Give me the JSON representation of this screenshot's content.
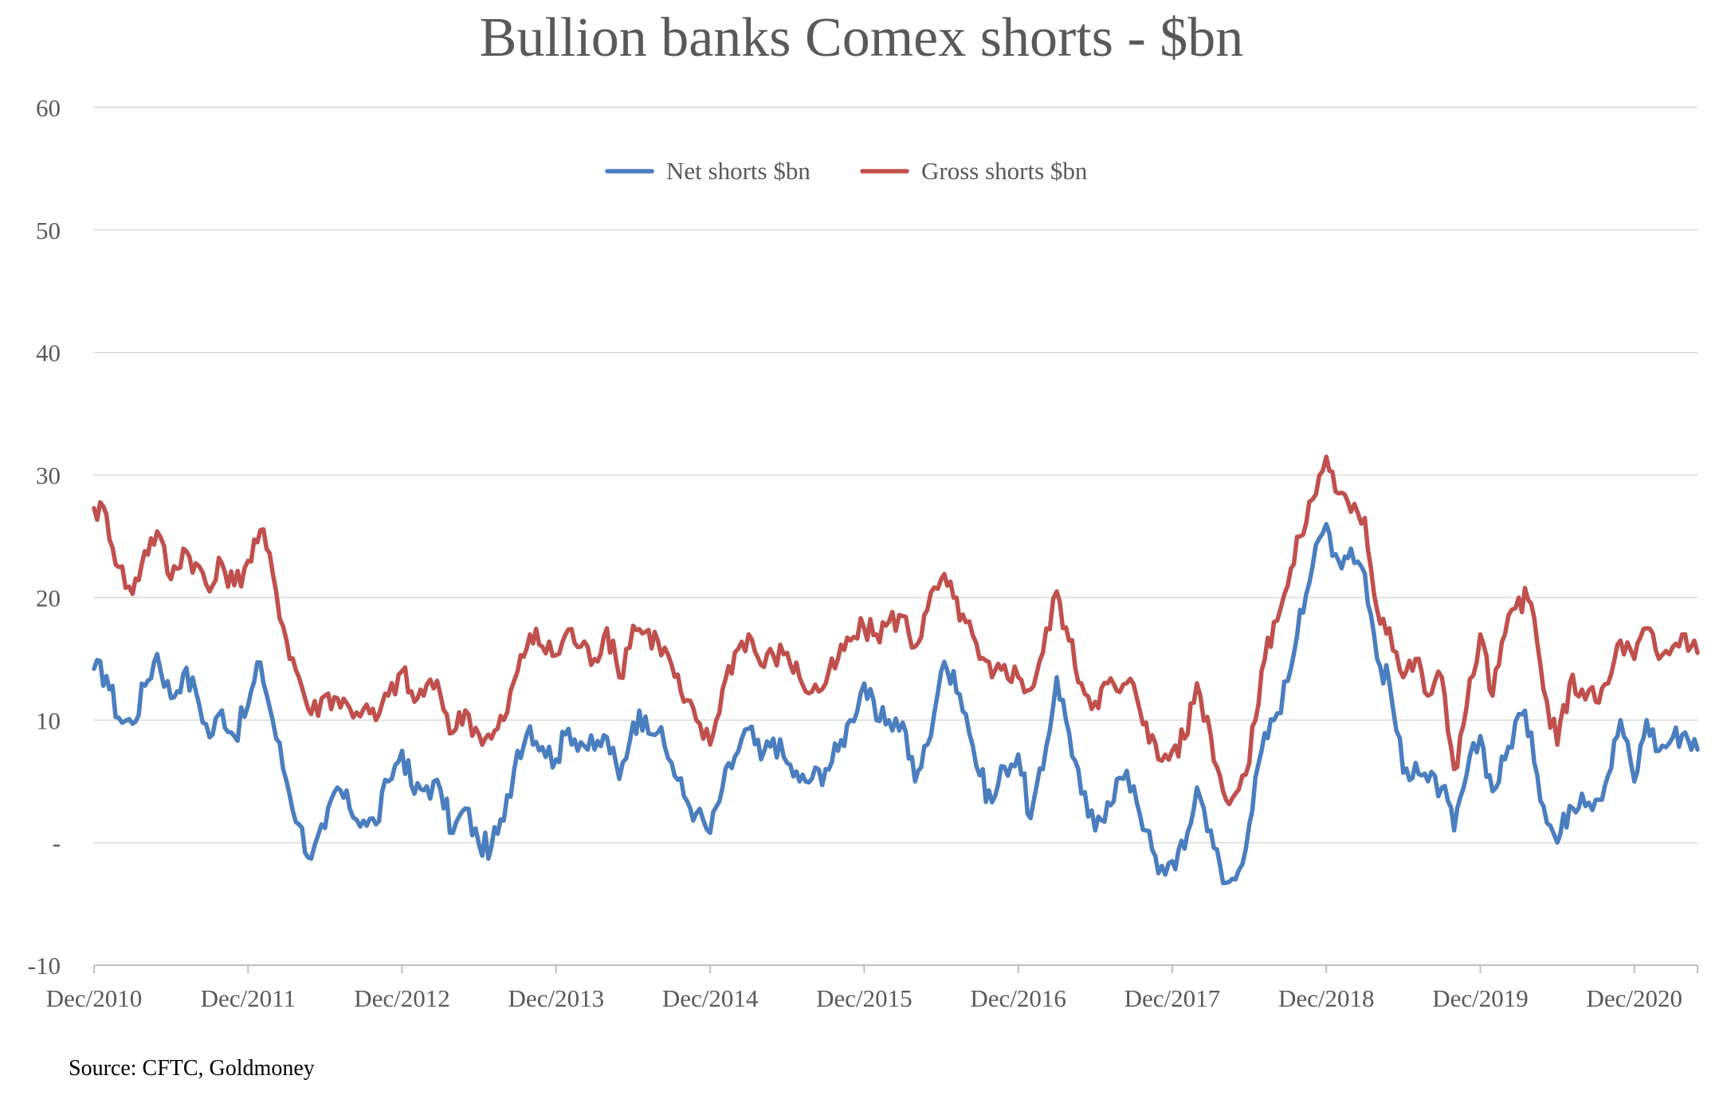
{
  "chart_data": {
    "type": "line",
    "title": "Bullion banks Comex shorts - $bn",
    "source": "Source: CFTC, Goldmoney",
    "ylim": [
      -10,
      60
    ],
    "y_ticks": [
      {
        "value": 60,
        "label": "60"
      },
      {
        "value": 50,
        "label": "50"
      },
      {
        "value": 40,
        "label": "40"
      },
      {
        "value": 30,
        "label": "30"
      },
      {
        "value": 20,
        "label": "20"
      },
      {
        "value": 10,
        "label": "10"
      },
      {
        "value": 0,
        "label": "-"
      },
      {
        "value": -10,
        "label": "-10"
      }
    ],
    "x_ticks": [
      "Dec/2010",
      "Dec/2011",
      "Dec/2012",
      "Dec/2013",
      "Dec/2014",
      "Dec/2015",
      "Dec/2016",
      "Dec/2017",
      "Dec/2018",
      "Dec/2019",
      "Dec/2020"
    ],
    "x_range_years": [
      2010.92,
      2021.33
    ],
    "grid": true,
    "legend_position": "top-center",
    "series": [
      {
        "name": "Net shorts $bn",
        "color": "#4a7ebf",
        "points": [
          [
            2010.92,
            14.2
          ],
          [
            2011.0,
            13.6
          ],
          [
            2011.08,
            10.2
          ],
          [
            2011.17,
            9.7
          ],
          [
            2011.25,
            12.8
          ],
          [
            2011.33,
            15.4
          ],
          [
            2011.42,
            11.8
          ],
          [
            2011.5,
            13.8
          ],
          [
            2011.58,
            12.4
          ],
          [
            2011.67,
            8.6
          ],
          [
            2011.75,
            10.8
          ],
          [
            2011.83,
            8.7
          ],
          [
            2011.92,
            11.2
          ],
          [
            2012.0,
            14.7
          ],
          [
            2012.08,
            10.0
          ],
          [
            2012.17,
            5.0
          ],
          [
            2012.25,
            1.5
          ],
          [
            2012.33,
            -1.3
          ],
          [
            2012.42,
            1.2
          ],
          [
            2012.5,
            4.5
          ],
          [
            2012.58,
            2.8
          ],
          [
            2012.67,
            1.8
          ],
          [
            2012.75,
            1.5
          ],
          [
            2012.83,
            5.0
          ],
          [
            2012.92,
            7.5
          ],
          [
            2013.0,
            4.0
          ],
          [
            2013.08,
            4.6
          ],
          [
            2013.17,
            4.3
          ],
          [
            2013.25,
            0.8
          ],
          [
            2013.33,
            2.8
          ],
          [
            2013.42,
            -0.2
          ],
          [
            2013.5,
            -0.3
          ],
          [
            2013.58,
            1.8
          ],
          [
            2013.67,
            7.5
          ],
          [
            2013.75,
            9.5
          ],
          [
            2013.83,
            7.8
          ],
          [
            2013.92,
            6.8
          ],
          [
            2014.0,
            9.3
          ],
          [
            2014.08,
            8.2
          ],
          [
            2014.17,
            7.6
          ],
          [
            2014.25,
            8.6
          ],
          [
            2014.33,
            5.2
          ],
          [
            2014.42,
            9.8
          ],
          [
            2014.5,
            10.3
          ],
          [
            2014.58,
            9.0
          ],
          [
            2014.67,
            6.5
          ],
          [
            2014.75,
            3.8
          ],
          [
            2014.83,
            2.4
          ],
          [
            2014.92,
            0.8
          ],
          [
            2015.0,
            4.5
          ],
          [
            2015.08,
            7.0
          ],
          [
            2015.17,
            9.3
          ],
          [
            2015.25,
            6.8
          ],
          [
            2015.33,
            8.5
          ],
          [
            2015.42,
            6.5
          ],
          [
            2015.5,
            5.0
          ],
          [
            2015.58,
            5.2
          ],
          [
            2015.67,
            6.0
          ],
          [
            2015.75,
            7.5
          ],
          [
            2015.83,
            10.0
          ],
          [
            2015.92,
            13.0
          ],
          [
            2016.0,
            10.0
          ],
          [
            2016.08,
            10.0
          ],
          [
            2016.17,
            9.8
          ],
          [
            2016.25,
            5.0
          ],
          [
            2016.33,
            8.0
          ],
          [
            2016.42,
            14.0
          ],
          [
            2016.5,
            14.0
          ],
          [
            2016.58,
            10.5
          ],
          [
            2016.67,
            5.5
          ],
          [
            2016.75,
            3.3
          ],
          [
            2016.83,
            6.2
          ],
          [
            2016.92,
            7.2
          ],
          [
            2017.0,
            2.0
          ],
          [
            2017.08,
            6.0
          ],
          [
            2017.17,
            13.5
          ],
          [
            2017.25,
            9.0
          ],
          [
            2017.33,
            4.0
          ],
          [
            2017.42,
            1.0
          ],
          [
            2017.5,
            3.3
          ],
          [
            2017.58,
            5.3
          ],
          [
            2017.67,
            4.6
          ],
          [
            2017.75,
            1.0
          ],
          [
            2017.83,
            -2.5
          ],
          [
            2017.92,
            -1.5
          ],
          [
            2018.0,
            -0.5
          ],
          [
            2018.08,
            4.5
          ],
          [
            2018.17,
            1.0
          ],
          [
            2018.25,
            -3.3
          ],
          [
            2018.33,
            -3.0
          ],
          [
            2018.42,
            1.5
          ],
          [
            2018.5,
            7.5
          ],
          [
            2018.58,
            10.0
          ],
          [
            2018.67,
            13.2
          ],
          [
            2018.75,
            19.0
          ],
          [
            2018.83,
            22.5
          ],
          [
            2018.92,
            26.0
          ],
          [
            2019.0,
            23.0
          ],
          [
            2019.08,
            24.0
          ],
          [
            2019.17,
            22.0
          ],
          [
            2019.25,
            15.0
          ],
          [
            2019.33,
            13.0
          ],
          [
            2019.42,
            5.7
          ],
          [
            2019.5,
            6.5
          ],
          [
            2019.58,
            5.0
          ],
          [
            2019.67,
            4.5
          ],
          [
            2019.75,
            1.0
          ],
          [
            2019.83,
            5.5
          ],
          [
            2019.92,
            8.7
          ],
          [
            2020.0,
            4.2
          ],
          [
            2020.08,
            6.8
          ],
          [
            2020.17,
            10.5
          ],
          [
            2020.25,
            9.0
          ],
          [
            2020.33,
            3.0
          ],
          [
            2020.42,
            0.0
          ],
          [
            2020.5,
            3.0
          ],
          [
            2020.58,
            4.0
          ],
          [
            2020.67,
            3.5
          ],
          [
            2020.75,
            5.5
          ],
          [
            2020.83,
            10.0
          ],
          [
            2020.92,
            5.0
          ],
          [
            2021.0,
            10.0
          ],
          [
            2021.08,
            7.5
          ],
          [
            2021.17,
            8.6
          ],
          [
            2021.25,
            9.0
          ],
          [
            2021.33,
            7.6
          ]
        ]
      },
      {
        "name": "Gross shorts $bn",
        "color": "#c0504d",
        "points": [
          [
            2010.92,
            27.3
          ],
          [
            2011.0,
            26.8
          ],
          [
            2011.08,
            22.5
          ],
          [
            2011.17,
            20.3
          ],
          [
            2011.25,
            23.8
          ],
          [
            2011.33,
            25.4
          ],
          [
            2011.42,
            21.5
          ],
          [
            2011.5,
            24.0
          ],
          [
            2011.58,
            22.8
          ],
          [
            2011.67,
            20.5
          ],
          [
            2011.75,
            22.8
          ],
          [
            2011.83,
            21.0
          ],
          [
            2011.92,
            23.0
          ],
          [
            2012.0,
            25.5
          ],
          [
            2012.08,
            22.0
          ],
          [
            2012.17,
            16.5
          ],
          [
            2012.25,
            13.5
          ],
          [
            2012.33,
            10.5
          ],
          [
            2012.42,
            12.0
          ],
          [
            2012.5,
            11.8
          ],
          [
            2012.58,
            11.0
          ],
          [
            2012.67,
            10.9
          ],
          [
            2012.75,
            10.0
          ],
          [
            2012.83,
            12.0
          ],
          [
            2012.92,
            14.0
          ],
          [
            2013.0,
            11.5
          ],
          [
            2013.08,
            12.9
          ],
          [
            2013.17,
            12.0
          ],
          [
            2013.25,
            9.0
          ],
          [
            2013.33,
            10.8
          ],
          [
            2013.42,
            8.8
          ],
          [
            2013.5,
            8.5
          ],
          [
            2013.58,
            10.0
          ],
          [
            2013.67,
            14.0
          ],
          [
            2013.75,
            17.0
          ],
          [
            2013.83,
            16.0
          ],
          [
            2013.92,
            15.3
          ],
          [
            2014.0,
            17.4
          ],
          [
            2014.08,
            16.0
          ],
          [
            2014.17,
            15.0
          ],
          [
            2014.25,
            17.5
          ],
          [
            2014.33,
            13.5
          ],
          [
            2014.42,
            17.7
          ],
          [
            2014.5,
            17.2
          ],
          [
            2014.58,
            16.5
          ],
          [
            2014.67,
            14.5
          ],
          [
            2014.75,
            11.5
          ],
          [
            2014.83,
            10.0
          ],
          [
            2014.92,
            8.0
          ],
          [
            2015.0,
            12.5
          ],
          [
            2015.08,
            15.5
          ],
          [
            2015.17,
            17.0
          ],
          [
            2015.25,
            14.5
          ],
          [
            2015.33,
            15.3
          ],
          [
            2015.42,
            15.5
          ],
          [
            2015.5,
            13.5
          ],
          [
            2015.58,
            12.3
          ],
          [
            2015.67,
            13.0
          ],
          [
            2015.75,
            15.0
          ],
          [
            2015.83,
            16.5
          ],
          [
            2015.92,
            17.5
          ],
          [
            2016.0,
            17.0
          ],
          [
            2016.08,
            18.0
          ],
          [
            2016.17,
            18.5
          ],
          [
            2016.25,
            16.0
          ],
          [
            2016.33,
            19.0
          ],
          [
            2016.42,
            21.5
          ],
          [
            2016.5,
            20.0
          ],
          [
            2016.58,
            18.0
          ],
          [
            2016.67,
            15.0
          ],
          [
            2016.75,
            13.5
          ],
          [
            2016.83,
            14.5
          ],
          [
            2016.92,
            13.5
          ],
          [
            2017.0,
            12.5
          ],
          [
            2017.08,
            15.5
          ],
          [
            2017.17,
            20.5
          ],
          [
            2017.25,
            16.5
          ],
          [
            2017.33,
            13.0
          ],
          [
            2017.42,
            11.5
          ],
          [
            2017.5,
            13.0
          ],
          [
            2017.58,
            12.3
          ],
          [
            2017.67,
            12.9
          ],
          [
            2017.75,
            9.8
          ],
          [
            2017.83,
            6.8
          ],
          [
            2017.92,
            7.5
          ],
          [
            2018.0,
            8.5
          ],
          [
            2018.08,
            13.0
          ],
          [
            2018.17,
            8.8
          ],
          [
            2018.25,
            4.2
          ],
          [
            2018.33,
            4.0
          ],
          [
            2018.42,
            6.5
          ],
          [
            2018.5,
            14.0
          ],
          [
            2018.58,
            18.0
          ],
          [
            2018.67,
            21.0
          ],
          [
            2018.75,
            25.0
          ],
          [
            2018.83,
            28.0
          ],
          [
            2018.92,
            31.5
          ],
          [
            2019.0,
            28.5
          ],
          [
            2019.08,
            27.0
          ],
          [
            2019.17,
            26.5
          ],
          [
            2019.25,
            19.0
          ],
          [
            2019.33,
            17.5
          ],
          [
            2019.42,
            13.5
          ],
          [
            2019.5,
            15.0
          ],
          [
            2019.58,
            12.0
          ],
          [
            2019.67,
            13.5
          ],
          [
            2019.75,
            6.0
          ],
          [
            2019.83,
            11.0
          ],
          [
            2019.92,
            17.0
          ],
          [
            2020.0,
            12.0
          ],
          [
            2020.08,
            17.0
          ],
          [
            2020.17,
            20.0
          ],
          [
            2020.25,
            19.5
          ],
          [
            2020.33,
            12.5
          ],
          [
            2020.42,
            8.0
          ],
          [
            2020.5,
            13.0
          ],
          [
            2020.58,
            12.5
          ],
          [
            2020.67,
            11.5
          ],
          [
            2020.75,
            13.0
          ],
          [
            2020.83,
            16.5
          ],
          [
            2020.92,
            15.0
          ],
          [
            2021.0,
            17.5
          ],
          [
            2021.08,
            15.0
          ],
          [
            2021.17,
            16.0
          ],
          [
            2021.25,
            17.0
          ],
          [
            2021.33,
            15.5
          ]
        ]
      }
    ]
  }
}
